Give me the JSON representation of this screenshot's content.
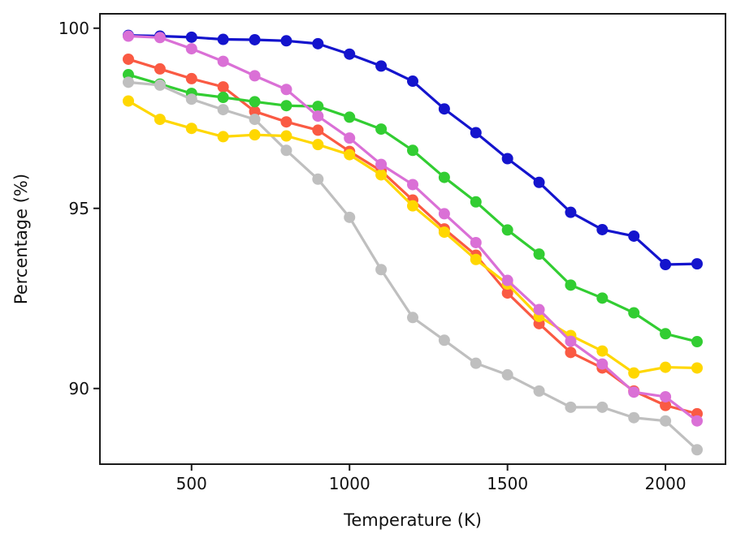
{
  "figure": {
    "background_color": "#ffffff",
    "spine_color": "#1a1a1a"
  },
  "chart_data": {
    "type": "line",
    "title": "",
    "xlabel": "Temperature (K)",
    "ylabel": "Percentage (%)",
    "x": [
      300,
      400,
      500,
      600,
      700,
      800,
      900,
      1000,
      1100,
      1200,
      1300,
      1400,
      1500,
      1600,
      1700,
      1800,
      1900,
      2000,
      2100
    ],
    "series": [
      {
        "name": "tomato",
        "color": "#fa5a43",
        "values": [
          99.14,
          98.87,
          98.6,
          98.37,
          97.69,
          97.4,
          97.17,
          96.58,
          96.04,
          95.23,
          94.43,
          93.7,
          92.65,
          91.8,
          91.0,
          90.57,
          89.93,
          89.53,
          89.3
        ]
      },
      {
        "name": "limegreen",
        "color": "#32cd32",
        "values": [
          98.71,
          98.45,
          98.19,
          98.08,
          97.96,
          97.85,
          97.83,
          97.53,
          97.2,
          96.61,
          95.86,
          95.18,
          94.4,
          93.73,
          92.87,
          92.51,
          92.1,
          91.52,
          91.3
        ]
      },
      {
        "name": "silver",
        "color": "#bfbfbf",
        "values": [
          98.5,
          98.42,
          98.03,
          97.74,
          97.47,
          96.61,
          95.81,
          94.75,
          93.3,
          91.97,
          91.34,
          90.7,
          90.38,
          89.93,
          89.48,
          89.48,
          89.19,
          89.1,
          88.3
        ]
      },
      {
        "name": "gold",
        "color": "#ffd700",
        "values": [
          97.98,
          97.47,
          97.22,
          96.99,
          97.04,
          97.01,
          96.77,
          96.49,
          95.93,
          95.07,
          94.34,
          93.58,
          92.9,
          92.0,
          91.47,
          91.04,
          90.43,
          90.59,
          90.57
        ]
      },
      {
        "name": "blue",
        "color": "#1414cd",
        "values": [
          99.8,
          99.78,
          99.75,
          99.69,
          99.68,
          99.65,
          99.57,
          99.28,
          98.95,
          98.53,
          97.76,
          97.1,
          96.38,
          95.72,
          94.89,
          94.41,
          94.23,
          93.44,
          93.46
        ]
      },
      {
        "name": "orchid",
        "color": "#da70d6",
        "values": [
          99.78,
          99.74,
          99.43,
          99.08,
          98.68,
          98.3,
          97.56,
          96.95,
          96.22,
          95.66,
          94.85,
          94.05,
          93.0,
          92.19,
          91.31,
          90.68,
          89.9,
          89.77,
          89.1
        ]
      }
    ],
    "xlim": [
      210,
      2190
    ],
    "ylim": [
      87.9,
      100.4
    ],
    "xticks": [
      500,
      1000,
      1500,
      2000
    ],
    "yticks": [
      90,
      95,
      100
    ],
    "xtick_labels": [
      "500",
      "1000",
      "1500",
      "2000"
    ],
    "ytick_labels": [
      "90",
      "95",
      "100"
    ],
    "grid": false,
    "legend": "none",
    "marker": "circle",
    "marker_radius": 7,
    "line_width": 3.2
  }
}
